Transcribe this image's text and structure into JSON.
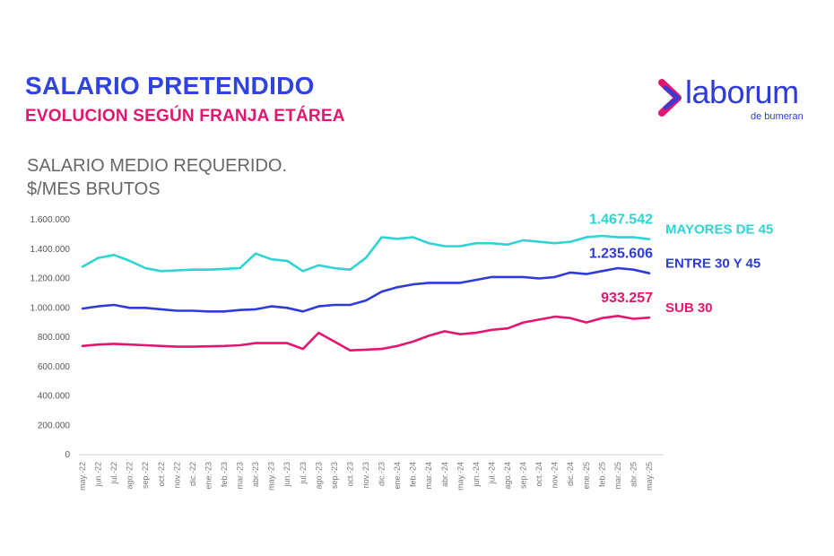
{
  "header": {
    "title": "SALARIO PRETENDIDO",
    "subtitle": "EVOLUCION SEGÚN FRANJA ETÁREA",
    "unit_line1": "SALARIO MEDIO REQUERIDO.",
    "unit_line2": "$/MES BRUTOS"
  },
  "logo": {
    "word": "laborum",
    "sub": "de bumeran"
  },
  "chart_data": {
    "type": "line",
    "title": "SALARIO MEDIO REQUERIDO. $/MES BRUTOS",
    "ylim": [
      0,
      1600000
    ],
    "yticks": [
      0,
      200000,
      400000,
      600000,
      800000,
      1000000,
      1200000,
      1400000,
      1600000
    ],
    "ytick_labels": [
      "0",
      "200.000",
      "400.000",
      "600.000",
      "800.000",
      "1.000.000",
      "1.200.000",
      "1.400.000",
      "1.600.000"
    ],
    "grid": false,
    "categories": [
      "may.-22",
      "jun.-22",
      "jul.-22",
      "ago.-22",
      "sep.-22",
      "oct.-22",
      "nov.-22",
      "dic.-22",
      "ene.-23",
      "feb.-23",
      "mar.-23",
      "abr.-23",
      "may.-23",
      "jun.-23",
      "jul.-23",
      "ago.-23",
      "sep.-23",
      "oct.-23",
      "nov.-23",
      "dic.-23",
      "ene.-24",
      "feb.-24",
      "mar.-24",
      "abr.-24",
      "may.-24",
      "jun.-24",
      "jul.-24",
      "ago.-24",
      "sep.-24",
      "oct.-24",
      "nov.-24",
      "dic.-24",
      "ene.-25",
      "feb.-25",
      "mar.-25",
      "abr.-25",
      "may.-25"
    ],
    "series": [
      {
        "name": "MAYORES DE 45",
        "color": "#2fd3d3",
        "end_label": "1.467.542",
        "values": [
          1280000,
          1340000,
          1360000,
          1320000,
          1270000,
          1250000,
          1255000,
          1260000,
          1260000,
          1265000,
          1270000,
          1370000,
          1330000,
          1320000,
          1250000,
          1290000,
          1270000,
          1260000,
          1340000,
          1480000,
          1470000,
          1480000,
          1440000,
          1420000,
          1420000,
          1440000,
          1440000,
          1430000,
          1460000,
          1450000,
          1440000,
          1450000,
          1480000,
          1490000,
          1480000,
          1480000,
          1467542
        ]
      },
      {
        "name": "ENTRE 30 Y 45",
        "color": "#2f3bd9",
        "end_label": "1.235.606",
        "values": [
          995000,
          1010000,
          1020000,
          1000000,
          1000000,
          990000,
          980000,
          980000,
          975000,
          975000,
          985000,
          990000,
          1010000,
          1000000,
          975000,
          1010000,
          1020000,
          1020000,
          1050000,
          1110000,
          1140000,
          1160000,
          1170000,
          1170000,
          1170000,
          1190000,
          1210000,
          1210000,
          1210000,
          1200000,
          1210000,
          1240000,
          1230000,
          1250000,
          1270000,
          1260000,
          1235606
        ]
      },
      {
        "name": "SUB 30",
        "color": "#e3166f",
        "end_label": "933.257",
        "values": [
          740000,
          750000,
          755000,
          750000,
          745000,
          740000,
          735000,
          735000,
          738000,
          740000,
          745000,
          760000,
          760000,
          760000,
          720000,
          830000,
          770000,
          710000,
          715000,
          720000,
          740000,
          770000,
          810000,
          840000,
          820000,
          830000,
          850000,
          860000,
          900000,
          920000,
          940000,
          930000,
          900000,
          930000,
          945000,
          925000,
          933257
        ]
      }
    ]
  }
}
